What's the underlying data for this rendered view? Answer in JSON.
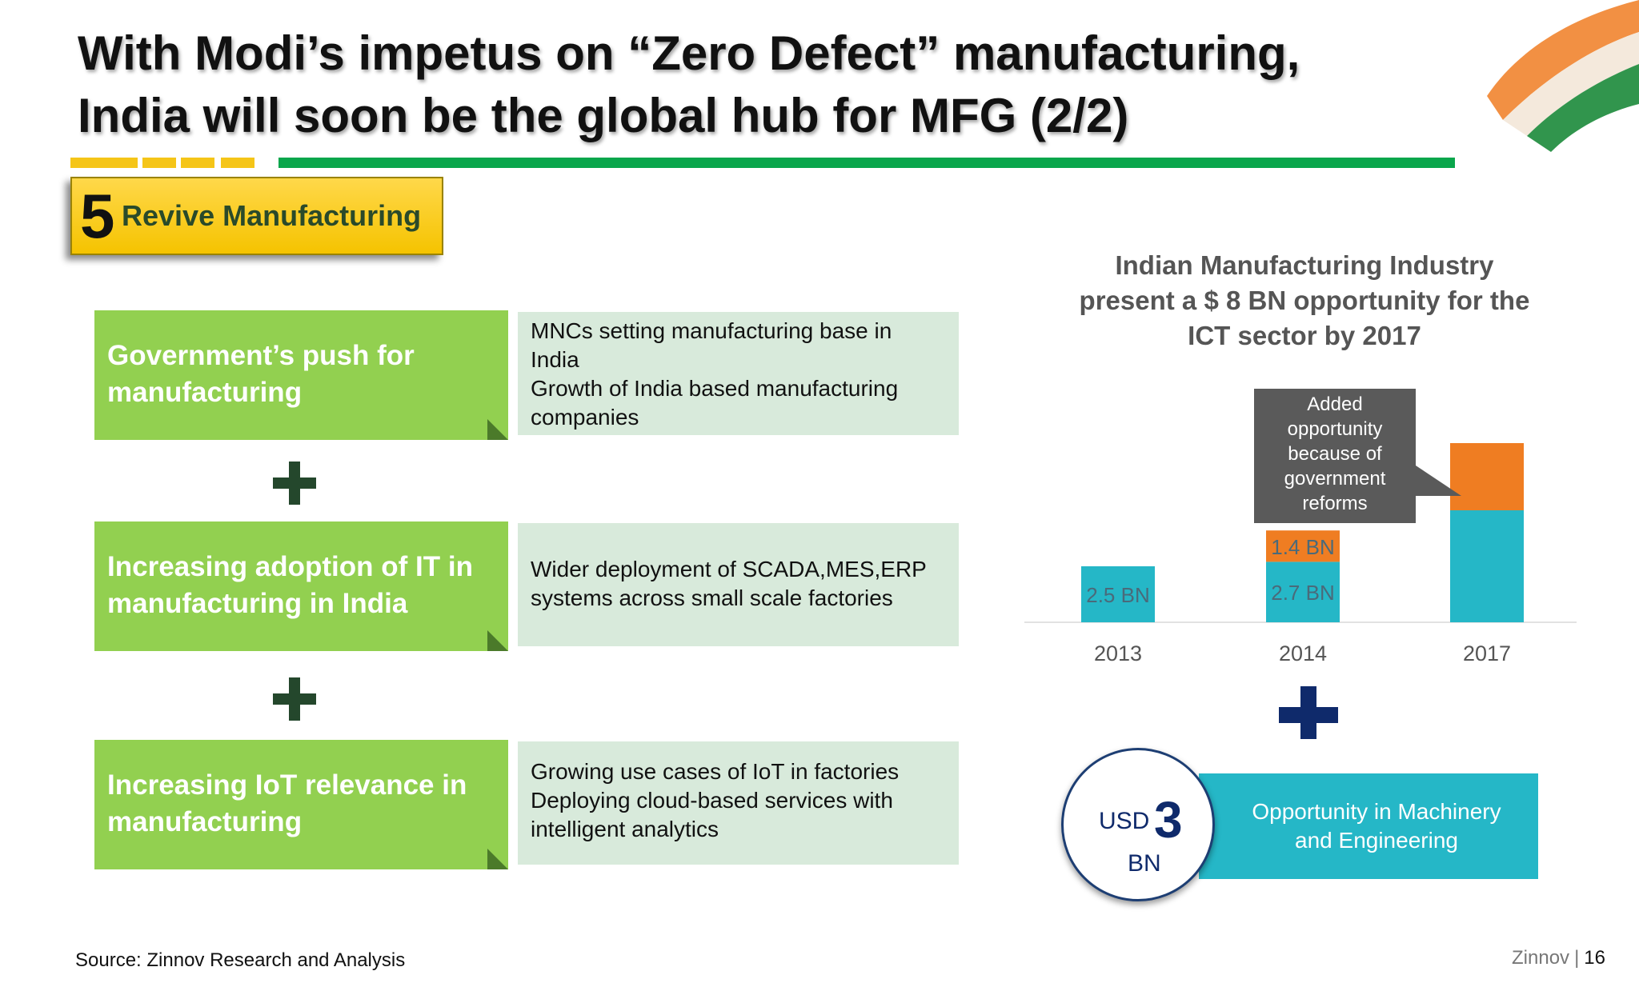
{
  "title_line1": "With Modi’s impetus on “Zero Defect” manufacturing,",
  "title_line2": "India will soon be the global hub for MFG (2/2)",
  "badge": {
    "number": "5",
    "label": "Revive Manufacturing"
  },
  "rows": [
    {
      "driver": "Government’s push for manufacturing",
      "details": [
        "MNCs setting manufacturing base in",
        "India",
        "Growth of India based manufacturing",
        "companies"
      ]
    },
    {
      "driver": "Increasing adoption of IT in manufacturing in India",
      "details": [
        "Wider deployment of SCADA,MES,ERP",
        "systems across small scale factories"
      ]
    },
    {
      "driver": "Increasing IoT relevance in manufacturing",
      "details": [
        "Growing use cases of IoT in factories",
        "Deploying cloud-based services with",
        "intelligent analytics"
      ]
    }
  ],
  "chart_title_lines": [
    "Indian Manufacturing Industry",
    "present a $ 8 BN opportunity for the",
    "ICT sector by 2017"
  ],
  "chart_data": {
    "type": "bar",
    "stacked": true,
    "title": "Indian Manufacturing Industry present a $ 8 BN opportunity for the ICT sector by 2017",
    "categories": [
      "2013",
      "2014",
      "2017"
    ],
    "series": [
      {
        "values": [
          2.5,
          2.7,
          5.0
        ],
        "color": "#25b7c7",
        "labels": [
          "2.5 BN",
          "2.7 BN",
          ""
        ]
      },
      {
        "values": [
          0,
          1.4,
          3.0
        ],
        "color": "#ef7d22",
        "labels": [
          "",
          "1.4 BN",
          ""
        ]
      }
    ],
    "ylim": [
      0,
      8.5
    ],
    "grid": false,
    "legend": "none"
  },
  "callout_lines": [
    "Added",
    "opportunity",
    "because of",
    "government",
    "reforms"
  ],
  "opportunity": {
    "usd": "USD",
    "amount": "3",
    "unit": "BN",
    "label_lines": [
      "Opportunity in Machinery",
      "and Engineering"
    ]
  },
  "source": "Source: Zinnov Research and Analysis",
  "footer": {
    "brand": "Zinnov",
    "page": "16"
  },
  "colors": {
    "green": "#92d050",
    "teal": "#25b7c7",
    "orange": "#ef7d22",
    "navy": "#0f2a6b"
  }
}
